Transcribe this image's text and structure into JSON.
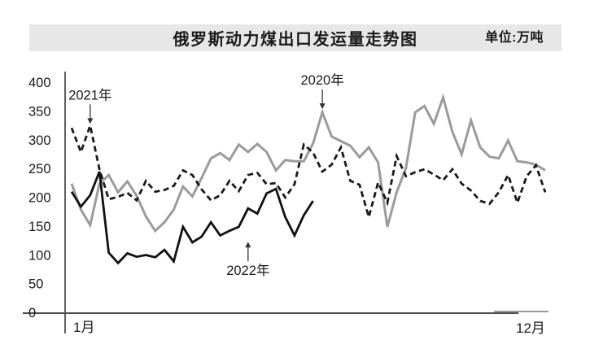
{
  "page": {
    "background": "#ffffff"
  },
  "header": {
    "title": "俄罗斯动力煤出口发运量走势图",
    "unit_label": "单位:万吨",
    "background": "#e7e7e7",
    "text_color": "#1a1a1a"
  },
  "chart_data": {
    "type": "line",
    "title": "俄罗斯动力煤出口发运量走势图",
    "unit_label": "单位:万吨",
    "xlabel": "",
    "ylabel": "万吨",
    "ylim": [
      0,
      400
    ],
    "y_ticks": [
      400,
      350,
      300,
      250,
      200,
      150,
      100,
      50,
      0
    ],
    "grid": false,
    "legend_position": "inline-annotations",
    "axis_color": "#4d4d4d",
    "axis_extension_color": "#9b9b9b",
    "label_color": "#1a1a1a",
    "x_axis": {
      "start_label": "1月",
      "end_label": "12月",
      "cadence": "weekly",
      "weeks": 52
    },
    "series": [
      {
        "name": "2020年",
        "color": "#9b9b9b",
        "style": "solid",
        "values": [
          225,
          180,
          153,
          225,
          240,
          210,
          229,
          204,
          168,
          143,
          158,
          180,
          220,
          203,
          235,
          269,
          278,
          266,
          293,
          280,
          294,
          280,
          248,
          266,
          264,
          264,
          295,
          349,
          307,
          299,
          291,
          271,
          288,
          262,
          150,
          210,
          252,
          349,
          360,
          329,
          375,
          315,
          276,
          335,
          288,
          272,
          269,
          300,
          264,
          262,
          258,
          248
        ]
      },
      {
        "name": "2021年",
        "color": "#1a1a1a",
        "style": "dashed",
        "values": [
          322,
          280,
          326,
          250,
          198,
          202,
          209,
          196,
          230,
          211,
          214,
          221,
          248,
          240,
          215,
          196,
          205,
          230,
          212,
          240,
          244,
          224,
          226,
          201,
          224,
          293,
          279,
          246,
          258,
          288,
          230,
          223,
          167,
          227,
          192,
          273,
          238,
          245,
          250,
          241,
          231,
          250,
          225,
          213,
          195,
          190,
          210,
          240,
          192,
          238,
          257,
          210
        ]
      },
      {
        "name": "2022年",
        "color": "#111111",
        "style": "solid",
        "values": [
          211,
          185,
          205,
          246,
          105,
          87,
          104,
          98,
          101,
          97,
          110,
          90,
          150,
          123,
          133,
          158,
          135,
          143,
          150,
          182,
          173,
          208,
          216,
          167,
          135,
          170,
          195
        ]
      }
    ],
    "annotations": [
      {
        "text": "2020年",
        "series_index": 0,
        "week": 28,
        "dir": "down",
        "gap": 4
      },
      {
        "text": "2021年",
        "series_index": 1,
        "week": 3,
        "dir": "down",
        "gap": 2
      },
      {
        "text": "2022年",
        "series_index": 2,
        "week": 20,
        "dir": "up",
        "gap": 41
      }
    ]
  }
}
